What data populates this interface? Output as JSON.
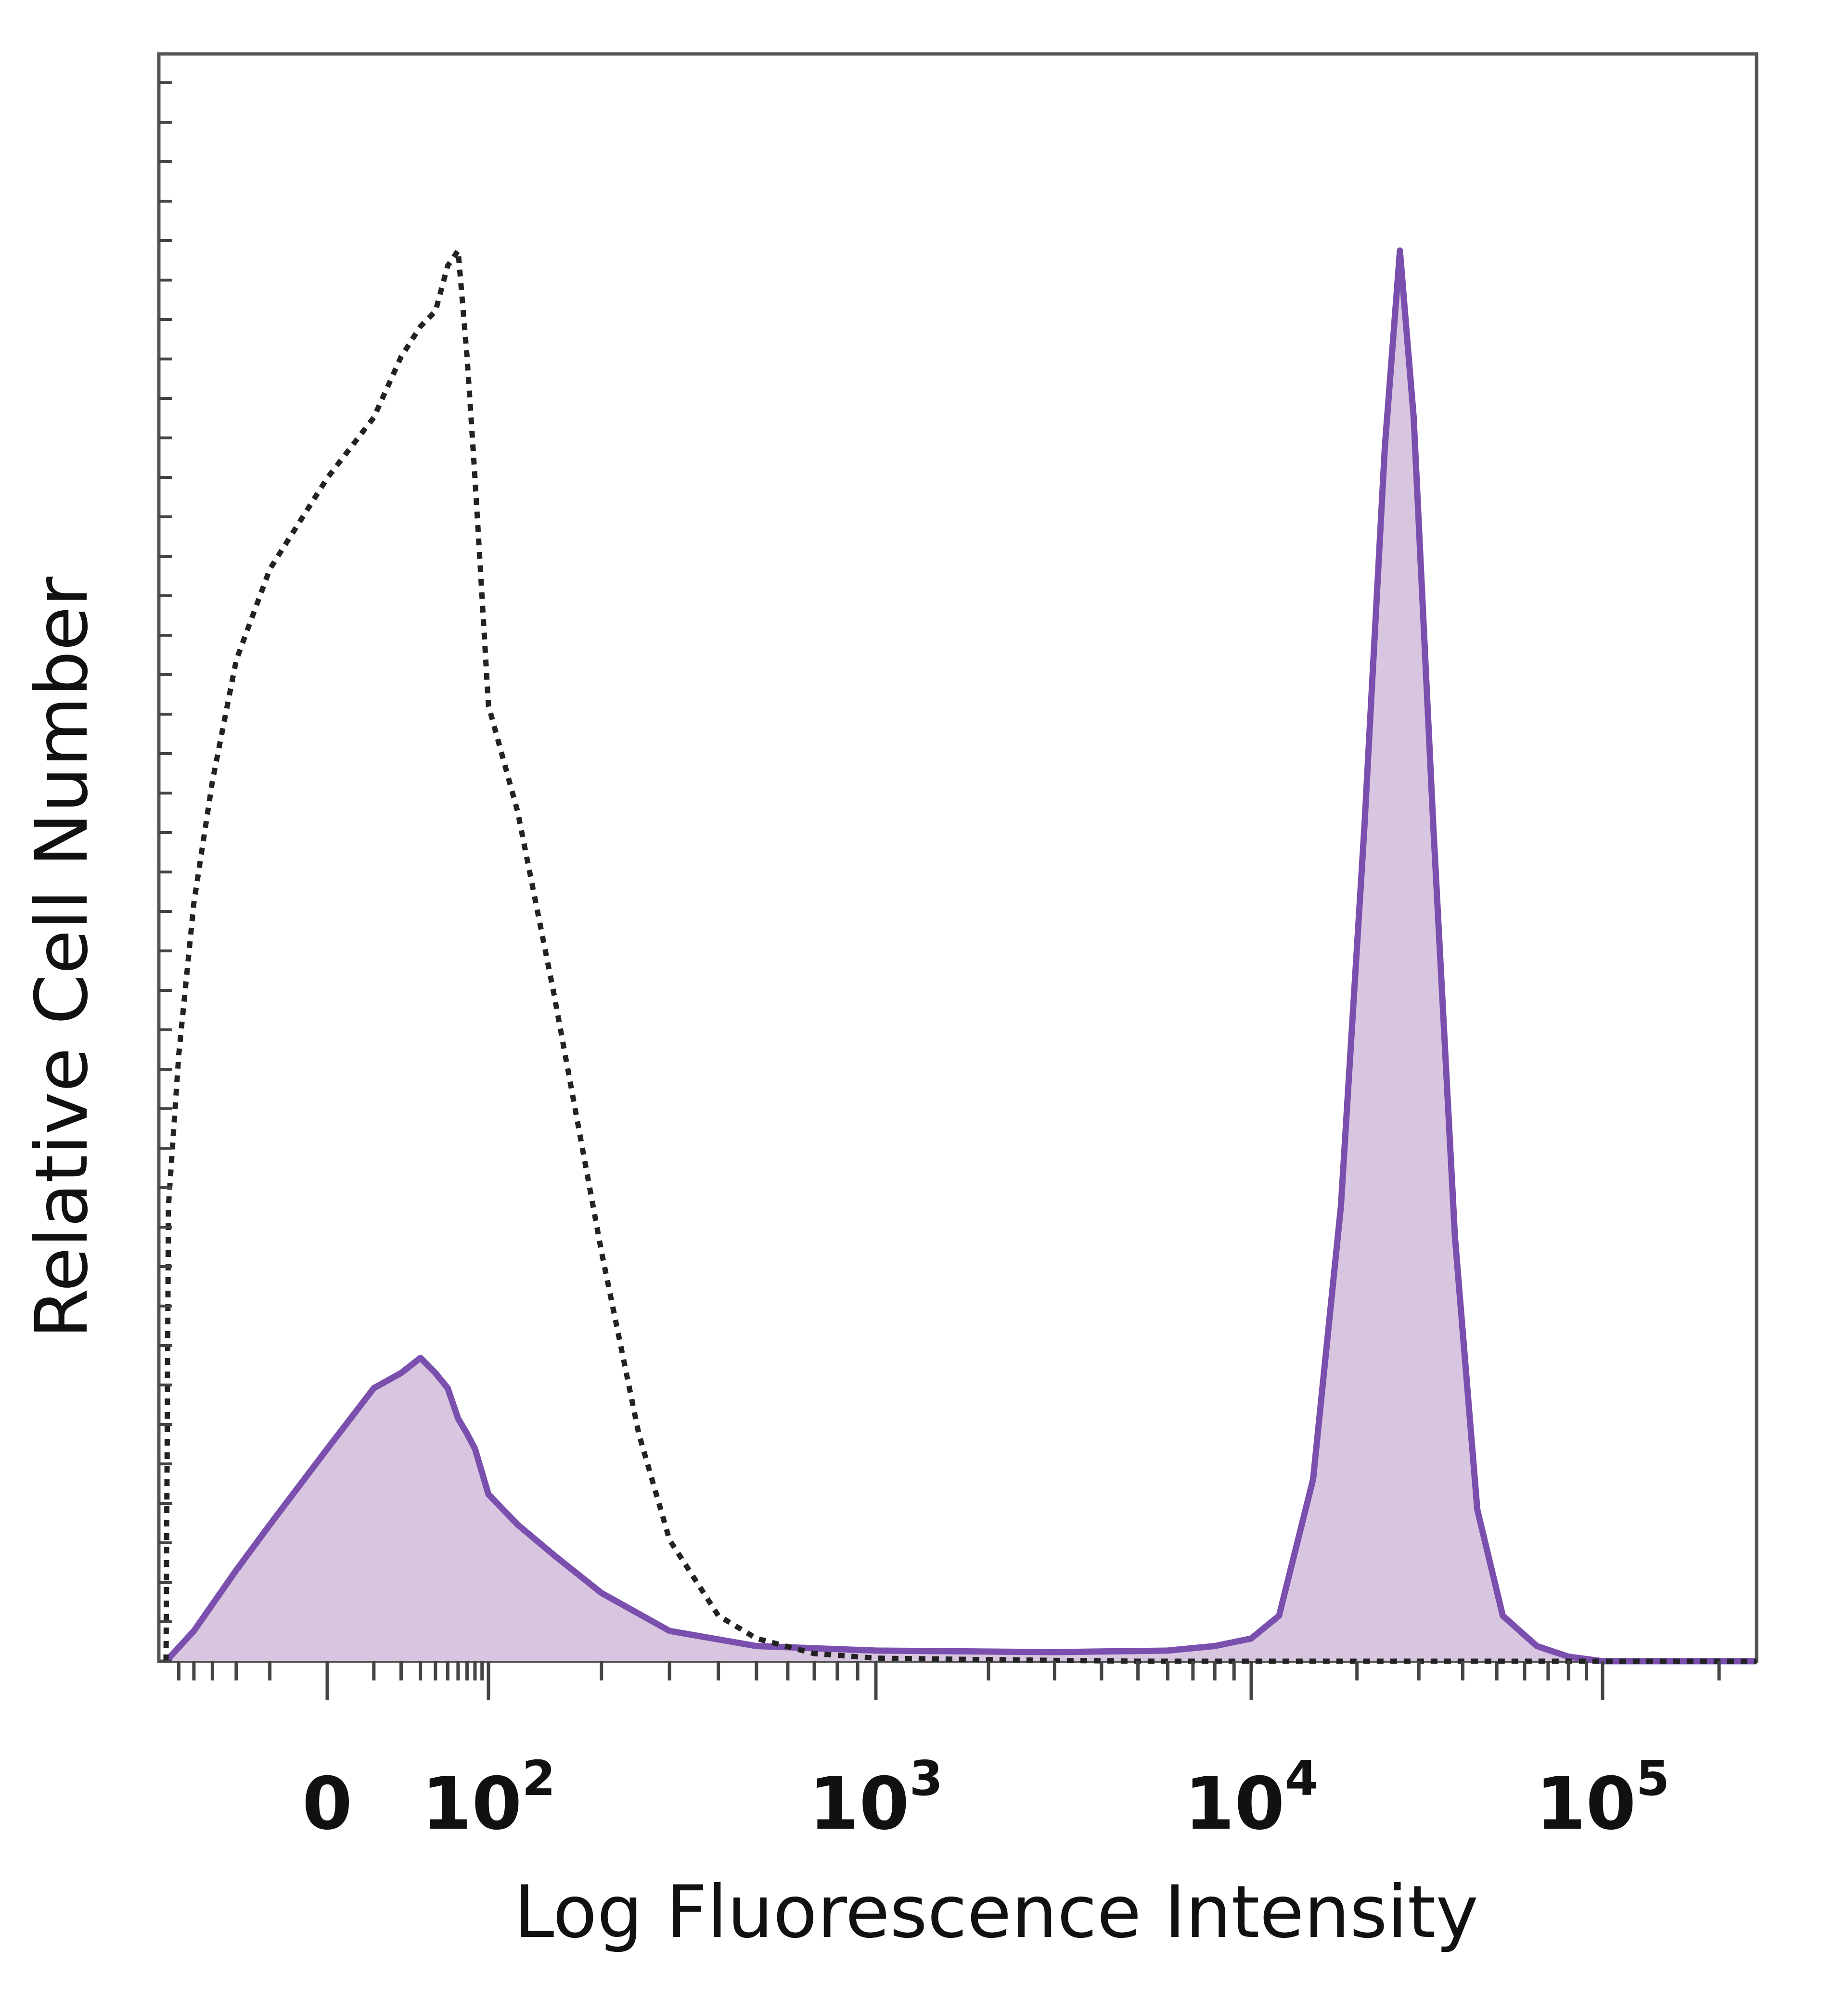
{
  "chart_data": {
    "type": "area",
    "xlabel": "Log Fluorescence Intensity",
    "ylabel": "Relative Cell Number",
    "x_scale": "biexponential",
    "x_ticks": [
      {
        "value": 0,
        "base": "0",
        "exp": ""
      },
      {
        "value": 100,
        "base": "10",
        "exp": "2"
      },
      {
        "value": 1000,
        "base": "10",
        "exp": "3"
      },
      {
        "value": 10000,
        "base": "10",
        "exp": "4"
      },
      {
        "value": 100000,
        "base": "10",
        "exp": "5"
      }
    ],
    "xlim": [
      -60,
      250000
    ],
    "ylim": [
      0,
      100
    ],
    "grid": false,
    "legend": "none",
    "series": [
      {
        "style": "dotted-outline",
        "color": "#222222",
        "points": [
          [
            -60,
            0
          ],
          [
            -58,
            30
          ],
          [
            -50,
            40
          ],
          [
            -40,
            50
          ],
          [
            -30,
            58
          ],
          [
            -20,
            66
          ],
          [
            -10,
            72
          ],
          [
            0,
            78
          ],
          [
            10,
            82
          ],
          [
            20,
            86
          ],
          [
            30,
            88
          ],
          [
            40,
            89
          ],
          [
            50,
            92
          ],
          [
            60,
            93
          ],
          [
            70,
            86
          ],
          [
            80,
            78
          ],
          [
            100,
            63
          ],
          [
            120,
            56
          ],
          [
            150,
            44
          ],
          [
            200,
            27
          ],
          [
            250,
            15
          ],
          [
            300,
            8
          ],
          [
            400,
            3
          ],
          [
            500,
            1.5
          ],
          [
            700,
            0.5
          ],
          [
            1000,
            0.2
          ],
          [
            2000,
            0.1
          ],
          [
            5000,
            0
          ],
          [
            250000,
            0
          ]
        ]
      },
      {
        "style": "filled",
        "color": "#7a4fae",
        "fill": "#d8c6e0",
        "points": [
          [
            -60,
            0
          ],
          [
            -40,
            2
          ],
          [
            -20,
            6
          ],
          [
            -10,
            9
          ],
          [
            0,
            14
          ],
          [
            10,
            18
          ],
          [
            20,
            19
          ],
          [
            30,
            20
          ],
          [
            40,
            19
          ],
          [
            50,
            18
          ],
          [
            60,
            16
          ],
          [
            70,
            15
          ],
          [
            80,
            14
          ],
          [
            100,
            11
          ],
          [
            120,
            9
          ],
          [
            150,
            7
          ],
          [
            200,
            4.5
          ],
          [
            300,
            2
          ],
          [
            500,
            1
          ],
          [
            1000,
            0.7
          ],
          [
            3000,
            0.6
          ],
          [
            6000,
            0.7
          ],
          [
            8000,
            1
          ],
          [
            10000,
            1.5
          ],
          [
            12000,
            3
          ],
          [
            15000,
            12
          ],
          [
            18000,
            30
          ],
          [
            21000,
            55
          ],
          [
            24000,
            80
          ],
          [
            26500,
            93
          ],
          [
            29000,
            82
          ],
          [
            33000,
            55
          ],
          [
            38000,
            28
          ],
          [
            44000,
            10
          ],
          [
            52000,
            3
          ],
          [
            65000,
            1
          ],
          [
            80000,
            0.3
          ],
          [
            100000,
            0
          ],
          [
            250000,
            0
          ]
        ]
      }
    ]
  }
}
